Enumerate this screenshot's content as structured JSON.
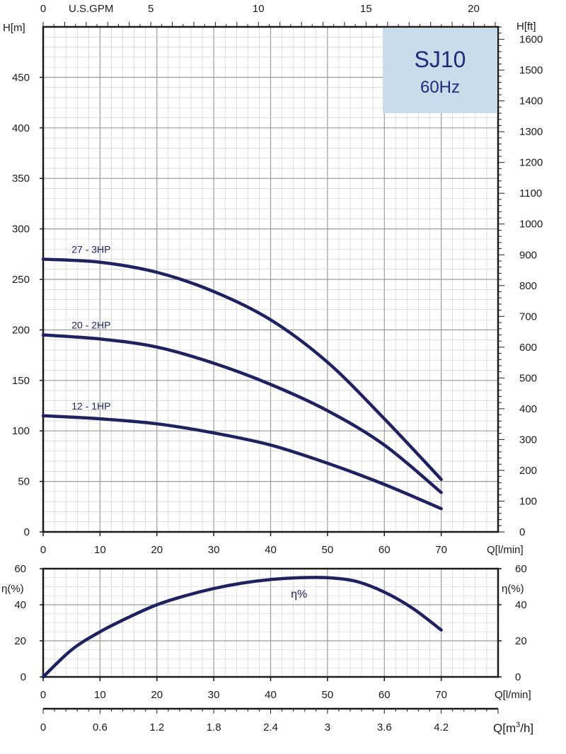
{
  "chart_data": [
    {
      "type": "line",
      "title": "",
      "badge": {
        "model": "SJ10",
        "freq": "60Hz",
        "color": "#c9dcec"
      },
      "x": [
        0,
        10,
        20,
        30,
        40,
        50,
        60,
        70
      ],
      "xlabel": "Q[l/min]",
      "xlim": [
        0,
        80
      ],
      "ylabel_left": "H[m]",
      "ylim_left": [
        0,
        500
      ],
      "yticks_left": [
        0,
        50,
        100,
        150,
        200,
        250,
        300,
        350,
        400,
        450
      ],
      "ylabel_right": "H[ft]",
      "yticks_right": [
        0,
        100,
        200,
        300,
        400,
        500,
        600,
        700,
        800,
        900,
        1000,
        1100,
        1200,
        1300,
        1400,
        1500,
        1600
      ],
      "top_axis_label": "U.S.GPM",
      "top_ticks": [
        0,
        5,
        10,
        15,
        20
      ],
      "grid": true,
      "line_color": "#1f2160",
      "series": [
        {
          "name": "27 - 3HP",
          "values": [
            270,
            267,
            257,
            238,
            210,
            168,
            112,
            52
          ]
        },
        {
          "name": "20 - 2HP",
          "values": [
            195,
            191,
            183,
            167,
            146,
            120,
            86,
            39
          ]
        },
        {
          "name": "12 - 1HP",
          "values": [
            115,
            112,
            107,
            98,
            86,
            68,
            47,
            23
          ]
        }
      ]
    },
    {
      "type": "line",
      "x": [
        0,
        5,
        10,
        15,
        20,
        25,
        30,
        35,
        40,
        45,
        50,
        55,
        60,
        65,
        70
      ],
      "xlabel": "Q[l/min]",
      "xlim": [
        0,
        80
      ],
      "ylabel_left": "η(%)",
      "ylabel_right": "η(%)",
      "ylim": [
        0,
        60
      ],
      "yticks": [
        0,
        20,
        40,
        60
      ],
      "grid": true,
      "series": [
        {
          "name": "η%",
          "values": [
            0,
            15,
            25,
            33,
            40,
            45,
            49,
            52,
            54,
            55,
            55,
            53,
            47,
            38,
            26
          ]
        }
      ]
    }
  ],
  "bottom_axis": {
    "label": "Q[m",
    "label_sup": "3",
    "label_end": "/h]",
    "ticks": [
      "0",
      "0.6",
      "1.2",
      "1.8",
      "2.4",
      "3",
      "3.6",
      "4.2"
    ]
  }
}
